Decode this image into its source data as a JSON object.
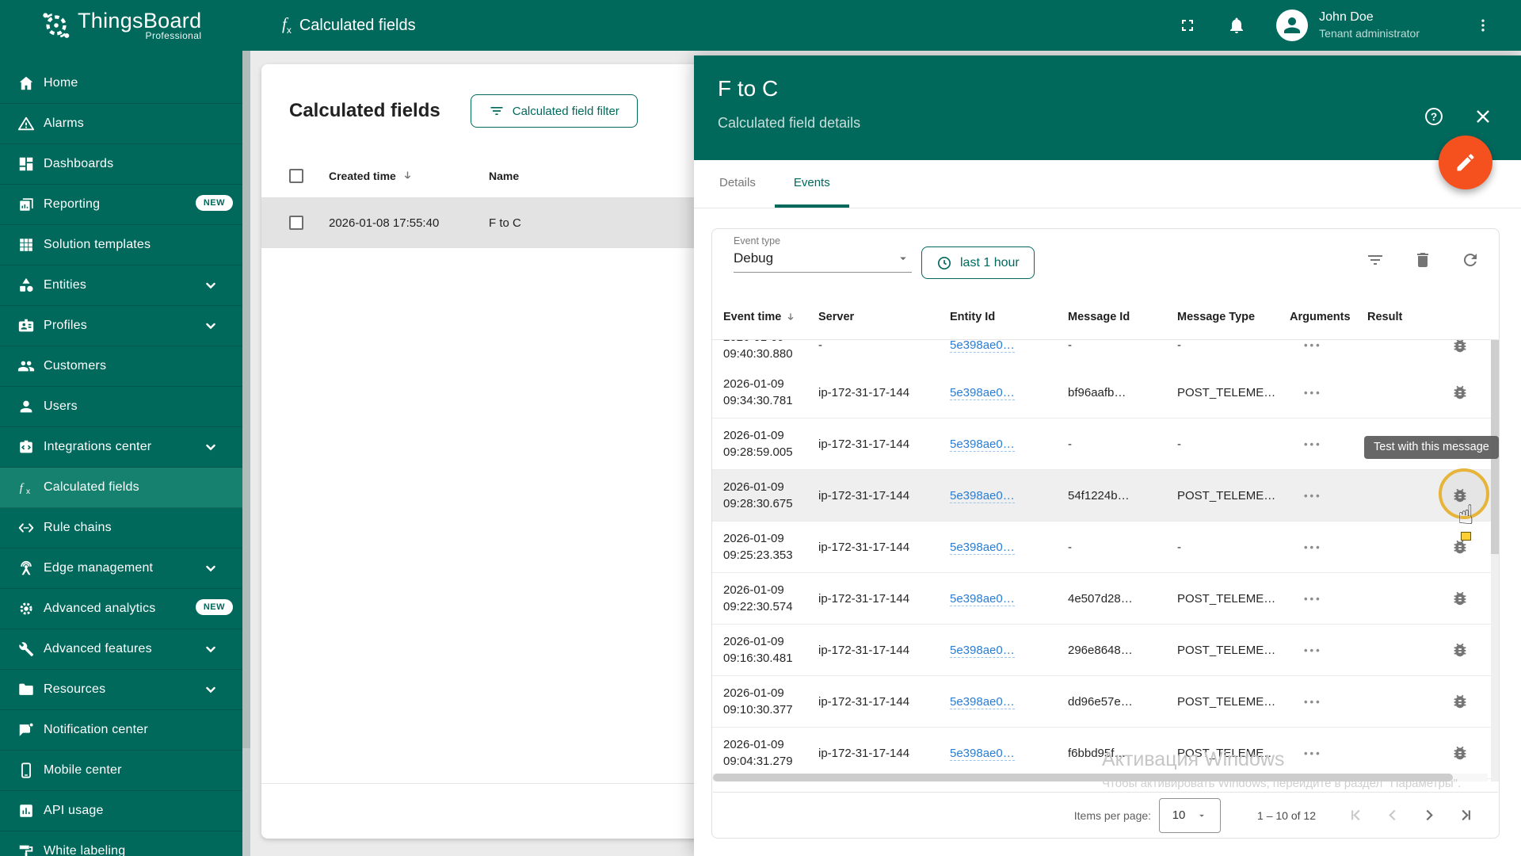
{
  "colors": {
    "accent": "#00695c",
    "fab": "#f4511e",
    "link": "#2a7dd4",
    "ring": "#e7b43a",
    "tooltip_bg": "#616161"
  },
  "header": {
    "logo_title": "ThingsBoard",
    "logo_subtitle": "Professional",
    "page_title": "Calculated fields",
    "user_name": "John Doe",
    "user_role": "Tenant administrator"
  },
  "sidebar": {
    "items": [
      {
        "id": "home",
        "icon": "home",
        "label": "Home"
      },
      {
        "id": "alarms",
        "icon": "warning",
        "label": "Alarms"
      },
      {
        "id": "dashboards",
        "icon": "dashboards",
        "label": "Dashboards"
      },
      {
        "id": "reporting",
        "icon": "reporting",
        "label": "Reporting",
        "badge": "NEW"
      },
      {
        "id": "solution-templates",
        "icon": "grid9",
        "label": "Solution templates"
      },
      {
        "id": "entities",
        "icon": "category",
        "label": "Entities",
        "chevron": true
      },
      {
        "id": "profiles",
        "icon": "badge",
        "label": "Profiles",
        "chevron": true
      },
      {
        "id": "customers",
        "icon": "people",
        "label": "Customers"
      },
      {
        "id": "users",
        "icon": "person",
        "label": "Users"
      },
      {
        "id": "integrations-center",
        "icon": "integration",
        "label": "Integrations center",
        "chevron": true
      },
      {
        "id": "calculated-fields",
        "icon": "fx",
        "label": "Calculated fields",
        "selected": true
      },
      {
        "id": "rule-chains",
        "icon": "rulechain",
        "label": "Rule chains"
      },
      {
        "id": "edge-management",
        "icon": "antenna",
        "label": "Edge management",
        "chevron": true
      },
      {
        "id": "advanced-analytics",
        "icon": "gearchip",
        "label": "Advanced analytics",
        "badge": "NEW"
      },
      {
        "id": "advanced-features",
        "icon": "tools",
        "label": "Advanced features",
        "chevron": true
      },
      {
        "id": "resources",
        "icon": "folder",
        "label": "Resources",
        "chevron": true
      },
      {
        "id": "notification-center",
        "icon": "chatdot",
        "label": "Notification center"
      },
      {
        "id": "mobile-center",
        "icon": "phone",
        "label": "Mobile center"
      },
      {
        "id": "api-usage",
        "icon": "apibars",
        "label": "API usage"
      },
      {
        "id": "white-labeling",
        "icon": "paint",
        "label": "White labeling"
      }
    ]
  },
  "list_panel": {
    "title": "Calculated fields",
    "filter_button": "Calculated field filter",
    "columns": {
      "created_time": "Created time",
      "name": "Name"
    },
    "row": {
      "created_time": "2026-01-08 17:55:40",
      "name": "F to C"
    }
  },
  "details_panel": {
    "title": "F to C",
    "subtitle": "Calculated field details",
    "tabs": [
      {
        "label": "Details",
        "active": false
      },
      {
        "label": "Events",
        "active": true
      }
    ],
    "toolbar": {
      "event_type_label": "Event type",
      "event_type_value": "Debug",
      "time_range": "last 1 hour"
    },
    "events_table": {
      "columns": [
        "Event time",
        "Server",
        "Entity Id",
        "Message Id",
        "Message Type",
        "Arguments",
        "Result"
      ],
      "clipped_row": {
        "time": "09:40:30.880"
      },
      "rows": [
        {
          "date": "2026-01-09",
          "time": "09:34:30.781",
          "server": "ip-172-31-17-144",
          "entity_id": "5e398ae0…",
          "message_id": "bf96aafb…",
          "message_type": "POST_TELEME…"
        },
        {
          "date": "2026-01-09",
          "time": "09:28:59.005",
          "server": "ip-172-31-17-144",
          "entity_id": "5e398ae0…",
          "message_id": "-",
          "message_type": "-"
        },
        {
          "date": "2026-01-09",
          "time": "09:28:30.675",
          "server": "ip-172-31-17-144",
          "entity_id": "5e398ae0…",
          "message_id": "54f1224b…",
          "message_type": "POST_TELEME…",
          "highlighted": true
        },
        {
          "date": "2026-01-09",
          "time": "09:25:23.353",
          "server": "ip-172-31-17-144",
          "entity_id": "5e398ae0…",
          "message_id": "-",
          "message_type": "-"
        },
        {
          "date": "2026-01-09",
          "time": "09:22:30.574",
          "server": "ip-172-31-17-144",
          "entity_id": "5e398ae0…",
          "message_id": "4e507d28…",
          "message_type": "POST_TELEME…"
        },
        {
          "date": "2026-01-09",
          "time": "09:16:30.481",
          "server": "ip-172-31-17-144",
          "entity_id": "5e398ae0…",
          "message_id": "296e8648…",
          "message_type": "POST_TELEME…"
        },
        {
          "date": "2026-01-09",
          "time": "09:10:30.377",
          "server": "ip-172-31-17-144",
          "entity_id": "5e398ae0…",
          "message_id": "dd96e57e…",
          "message_type": "POST_TELEME…"
        },
        {
          "date": "2026-01-09",
          "time": "09:04:31.279",
          "server": "ip-172-31-17-144",
          "entity_id": "5e398ae0…",
          "message_id": "f6bbd95f…",
          "message_type": "POST_TELEME…"
        }
      ]
    },
    "tooltip": "Test with this message",
    "pagination": {
      "items_per_page_label": "Items per page:",
      "items_per_page": "10",
      "range": "1 – 10 of 12"
    }
  },
  "watermark": {
    "line1": "Активация Windows",
    "line2": "Чтобы активировать Windows, перейдите в раздел \"Параметры\"."
  }
}
